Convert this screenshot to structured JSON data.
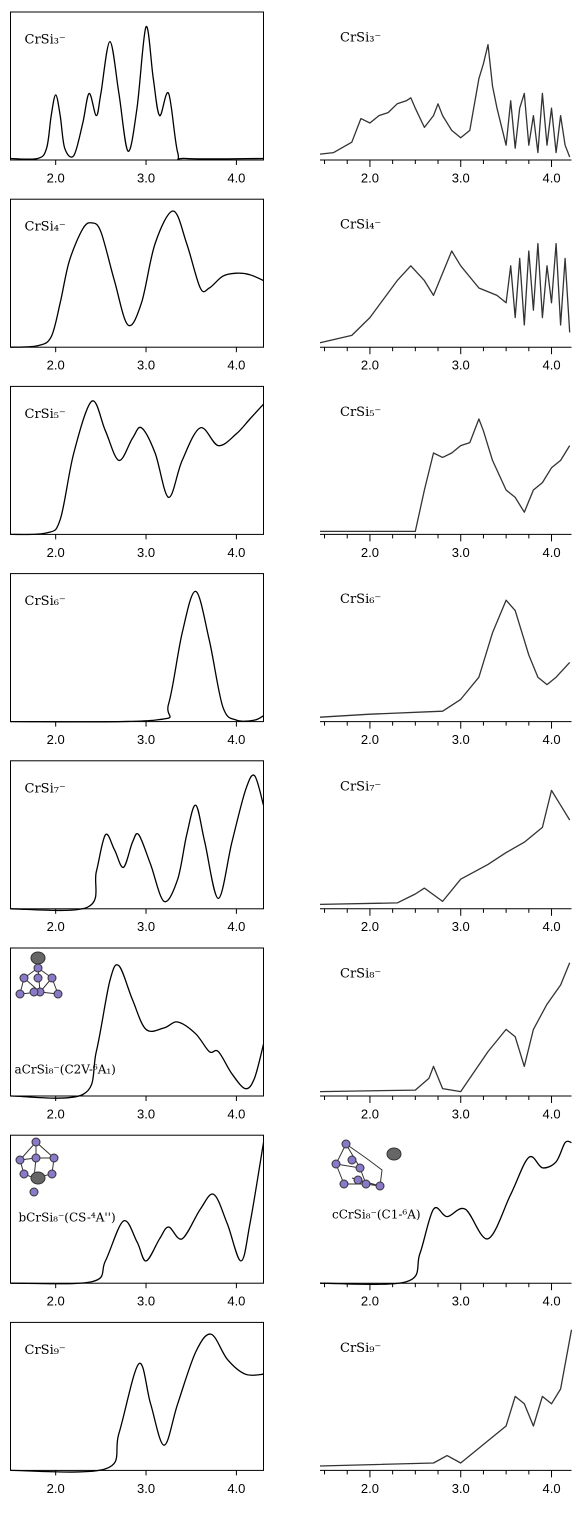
{
  "chart_data": [
    {
      "type": "line",
      "title": "CrSi₃⁻",
      "color": "#000000",
      "xlim": [
        1.5,
        4.3
      ],
      "ylim": [
        0,
        1
      ],
      "xticks": [
        {
          "value": 2,
          "label": "2.0"
        },
        {
          "value": 3,
          "label": "3.0"
        },
        {
          "value": 4,
          "label": "4.0"
        }
      ],
      "x": [
        1.5,
        1.8,
        1.9,
        1.95,
        2.0,
        2.05,
        2.1,
        2.2,
        2.3,
        2.37,
        2.45,
        2.5,
        2.6,
        2.7,
        2.8,
        2.9,
        3.0,
        3.08,
        3.15,
        3.25,
        3.35,
        3.45,
        4.3
      ],
      "values": [
        0.01,
        0.01,
        0.08,
        0.3,
        0.44,
        0.3,
        0.08,
        0.03,
        0.25,
        0.45,
        0.3,
        0.45,
        0.8,
        0.45,
        0.06,
        0.35,
        0.9,
        0.55,
        0.3,
        0.45,
        0.05,
        0.01,
        0.01
      ]
    },
    {
      "type": "line",
      "title": "CrSi₃⁻",
      "color": "#333333",
      "xlim": [
        1.45,
        4.22
      ],
      "ylim": [
        0,
        1
      ],
      "xticks": [
        {
          "value": 2,
          "label": "2.0"
        },
        {
          "value": 3,
          "label": "3.0"
        },
        {
          "value": 4,
          "label": "4.0"
        }
      ],
      "xminorticks": [
        1.5,
        1.75,
        2.25,
        2.5,
        2.75,
        3.25,
        3.5,
        3.75
      ],
      "x": [
        1.45,
        1.6,
        1.8,
        1.9,
        2.0,
        2.1,
        2.2,
        2.3,
        2.4,
        2.45,
        2.5,
        2.6,
        2.7,
        2.75,
        2.8,
        2.9,
        3.0,
        3.1,
        3.2,
        3.25,
        3.3,
        3.35,
        3.4,
        3.5,
        3.55,
        3.6,
        3.65,
        3.7,
        3.75,
        3.8,
        3.85,
        3.9,
        3.95,
        4.0,
        4.05,
        4.1,
        4.15,
        4.2
      ],
      "values": [
        0.04,
        0.05,
        0.12,
        0.28,
        0.25,
        0.3,
        0.32,
        0.38,
        0.4,
        0.42,
        0.35,
        0.22,
        0.3,
        0.38,
        0.3,
        0.2,
        0.15,
        0.2,
        0.55,
        0.65,
        0.78,
        0.5,
        0.35,
        0.1,
        0.4,
        0.08,
        0.35,
        0.45,
        0.1,
        0.3,
        0.05,
        0.45,
        0.1,
        0.35,
        0.05,
        0.3,
        0.1,
        0.02
      ]
    },
    {
      "type": "line",
      "title": "CrSi₄⁻",
      "color": "#000000",
      "xlim": [
        1.5,
        4.3
      ],
      "ylim": [
        0,
        1
      ],
      "xticks": [
        {
          "value": 2,
          "label": "2.0"
        },
        {
          "value": 3,
          "label": "3.0"
        },
        {
          "value": 4,
          "label": "4.0"
        }
      ],
      "x": [
        1.5,
        1.8,
        1.95,
        2.05,
        2.15,
        2.3,
        2.4,
        2.5,
        2.65,
        2.8,
        2.95,
        3.1,
        3.3,
        3.45,
        3.6,
        3.7,
        3.85,
        4.0,
        4.15,
        4.3
      ],
      "values": [
        0,
        0.01,
        0.07,
        0.3,
        0.58,
        0.8,
        0.84,
        0.78,
        0.45,
        0.15,
        0.3,
        0.7,
        0.92,
        0.7,
        0.4,
        0.4,
        0.48,
        0.5,
        0.49,
        0.45
      ]
    },
    {
      "type": "line",
      "title": "CrSi₄⁻",
      "color": "#333333",
      "xlim": [
        1.45,
        4.22
      ],
      "ylim": [
        0,
        1
      ],
      "xticks": [
        {
          "value": 2,
          "label": "2.0"
        },
        {
          "value": 3,
          "label": "3.0"
        },
        {
          "value": 4,
          "label": "4.0"
        }
      ],
      "xminorticks": [
        1.5,
        1.75,
        2.25,
        2.5,
        2.75,
        3.25,
        3.5,
        3.75
      ],
      "x": [
        1.45,
        1.8,
        2.0,
        2.3,
        2.45,
        2.6,
        2.7,
        2.9,
        3.0,
        3.2,
        3.4,
        3.5,
        3.55,
        3.6,
        3.65,
        3.7,
        3.75,
        3.8,
        3.85,
        3.9,
        3.95,
        4.0,
        4.05,
        4.1,
        4.15,
        4.2
      ],
      "values": [
        0.03,
        0.08,
        0.2,
        0.45,
        0.55,
        0.45,
        0.35,
        0.65,
        0.55,
        0.4,
        0.35,
        0.3,
        0.55,
        0.2,
        0.6,
        0.15,
        0.65,
        0.25,
        0.7,
        0.2,
        0.55,
        0.3,
        0.7,
        0.15,
        0.6,
        0.1
      ]
    },
    {
      "type": "line",
      "title": "CrSi₅⁻",
      "color": "#000000",
      "xlim": [
        1.5,
        4.3
      ],
      "ylim": [
        0,
        1
      ],
      "xticks": [
        {
          "value": 2,
          "label": "2.0"
        },
        {
          "value": 3,
          "label": "3.0"
        },
        {
          "value": 4,
          "label": "4.0"
        }
      ],
      "x": [
        1.5,
        1.9,
        2.05,
        2.2,
        2.4,
        2.55,
        2.7,
        2.85,
        2.95,
        3.1,
        3.25,
        3.4,
        3.6,
        3.8,
        4.0,
        4.15,
        4.3
      ],
      "values": [
        0,
        0.01,
        0.1,
        0.55,
        0.9,
        0.7,
        0.5,
        0.65,
        0.72,
        0.55,
        0.25,
        0.5,
        0.72,
        0.6,
        0.68,
        0.78,
        0.88
      ]
    },
    {
      "type": "line",
      "title": "CrSi₅⁻",
      "color": "#333333",
      "xlim": [
        1.45,
        4.22
      ],
      "ylim": [
        0,
        1
      ],
      "xticks": [
        {
          "value": 2,
          "label": "2.0"
        },
        {
          "value": 3,
          "label": "3.0"
        },
        {
          "value": 4,
          "label": "4.0"
        }
      ],
      "xminorticks": [
        1.5,
        1.75,
        2.25,
        2.5,
        2.75,
        3.25,
        3.5,
        3.75
      ],
      "x": [
        1.45,
        2.5,
        2.6,
        2.7,
        2.8,
        2.9,
        3.0,
        3.1,
        3.2,
        3.25,
        3.35,
        3.5,
        3.6,
        3.7,
        3.8,
        3.9,
        4.0,
        4.1,
        4.2
      ],
      "values": [
        0.02,
        0.02,
        0.3,
        0.55,
        0.52,
        0.55,
        0.6,
        0.62,
        0.78,
        0.7,
        0.5,
        0.3,
        0.25,
        0.15,
        0.3,
        0.35,
        0.45,
        0.5,
        0.6
      ]
    },
    {
      "type": "line",
      "title": "CrSi₆⁻",
      "color": "#000000",
      "xlim": [
        1.5,
        4.3
      ],
      "ylim": [
        0,
        1
      ],
      "xticks": [
        {
          "value": 2,
          "label": "2.0"
        },
        {
          "value": 3,
          "label": "3.0"
        },
        {
          "value": 4,
          "label": "4.0"
        }
      ],
      "x": [
        1.5,
        3.1,
        3.25,
        3.4,
        3.55,
        3.7,
        3.85,
        4.0,
        4.2,
        4.3
      ],
      "values": [
        0,
        0.01,
        0.12,
        0.6,
        0.88,
        0.55,
        0.1,
        0.01,
        0.01,
        0.04
      ]
    },
    {
      "type": "line",
      "title": "CrSi₆⁻",
      "color": "#333333",
      "xlim": [
        1.45,
        4.22
      ],
      "ylim": [
        0,
        1
      ],
      "xticks": [
        {
          "value": 2,
          "label": "2.0"
        },
        {
          "value": 3,
          "label": "3.0"
        },
        {
          "value": 4,
          "label": "4.0"
        }
      ],
      "xminorticks": [
        1.5,
        1.75,
        2.25,
        2.5,
        2.75,
        3.25,
        3.5,
        3.75
      ],
      "x": [
        1.45,
        2.0,
        2.8,
        3.0,
        3.2,
        3.35,
        3.5,
        3.6,
        3.75,
        3.85,
        3.95,
        4.05,
        4.2
      ],
      "values": [
        0.03,
        0.05,
        0.07,
        0.15,
        0.3,
        0.6,
        0.82,
        0.75,
        0.45,
        0.3,
        0.25,
        0.3,
        0.4
      ]
    },
    {
      "type": "line",
      "title": "CrSi₇⁻",
      "color": "#000000",
      "xlim": [
        1.5,
        4.3
      ],
      "ylim": [
        0,
        1
      ],
      "xticks": [
        {
          "value": 2,
          "label": "2.0"
        },
        {
          "value": 3,
          "label": "3.0"
        },
        {
          "value": 4,
          "label": "4.0"
        }
      ],
      "x": [
        1.5,
        2.35,
        2.45,
        2.55,
        2.65,
        2.75,
        2.85,
        2.92,
        3.05,
        3.2,
        3.35,
        3.45,
        3.55,
        3.65,
        3.8,
        3.95,
        4.1,
        4.2,
        4.3
      ],
      "values": [
        0,
        0.01,
        0.25,
        0.5,
        0.4,
        0.28,
        0.45,
        0.5,
        0.3,
        0.05,
        0.2,
        0.5,
        0.7,
        0.45,
        0.07,
        0.45,
        0.8,
        0.9,
        0.7
      ]
    },
    {
      "type": "line",
      "title": "CrSi₇⁻",
      "color": "#333333",
      "xlim": [
        1.45,
        4.22
      ],
      "ylim": [
        0,
        1
      ],
      "xticks": [
        {
          "value": 2,
          "label": "2.0"
        },
        {
          "value": 3,
          "label": "3.0"
        },
        {
          "value": 4,
          "label": "4.0"
        }
      ],
      "xminorticks": [
        1.5,
        1.75,
        2.25,
        2.5,
        2.75,
        3.25,
        3.5,
        3.75
      ],
      "x": [
        1.45,
        2.3,
        2.5,
        2.6,
        2.8,
        3.0,
        3.3,
        3.5,
        3.7,
        3.8,
        3.9,
        4.0,
        4.1,
        4.2
      ],
      "values": [
        0.03,
        0.04,
        0.1,
        0.14,
        0.05,
        0.2,
        0.3,
        0.38,
        0.45,
        0.5,
        0.55,
        0.8,
        0.7,
        0.6
      ]
    },
    {
      "type": "line",
      "title": "aCrSi₈⁻(C2V-⁶A₁)",
      "color": "#000000",
      "xlim": [
        1.5,
        4.3
      ],
      "ylim": [
        0,
        1
      ],
      "xticks": [
        {
          "value": 2,
          "label": "2.0"
        },
        {
          "value": 3,
          "label": "3.0"
        },
        {
          "value": 4,
          "label": "4.0"
        }
      ],
      "x": [
        1.5,
        2.3,
        2.45,
        2.6,
        2.7,
        2.85,
        3.0,
        3.2,
        3.35,
        3.55,
        3.7,
        3.8,
        3.95,
        4.1,
        4.2,
        4.3
      ],
      "values": [
        0,
        0.01,
        0.3,
        0.78,
        0.88,
        0.65,
        0.45,
        0.46,
        0.5,
        0.42,
        0.3,
        0.3,
        0.15,
        0.05,
        0.12,
        0.35
      ]
    },
    {
      "type": "line",
      "title": "CrSi₈⁻",
      "color": "#333333",
      "xlim": [
        1.45,
        4.22
      ],
      "ylim": [
        0,
        1
      ],
      "xticks": [
        {
          "value": 2,
          "label": "2.0"
        },
        {
          "value": 3,
          "label": "3.0"
        },
        {
          "value": 4,
          "label": "4.0"
        }
      ],
      "xminorticks": [
        1.5,
        1.75,
        2.25,
        2.5,
        2.75,
        3.25,
        3.5,
        3.75
      ],
      "x": [
        1.45,
        2.5,
        2.65,
        2.7,
        2.8,
        3.0,
        3.1,
        3.3,
        3.5,
        3.6,
        3.7,
        3.8,
        3.95,
        4.1,
        4.2
      ],
      "values": [
        0.03,
        0.04,
        0.12,
        0.2,
        0.05,
        0.03,
        0.12,
        0.3,
        0.45,
        0.4,
        0.2,
        0.45,
        0.62,
        0.75,
        0.9
      ]
    },
    {
      "type": "line",
      "title": "bCrSi₈⁻(CS-⁴A'')",
      "color": "#000000",
      "xlim": [
        1.5,
        4.3
      ],
      "ylim": [
        0,
        1
      ],
      "xticks": [
        {
          "value": 2,
          "label": "2.0"
        },
        {
          "value": 3,
          "label": "3.0"
        },
        {
          "value": 4,
          "label": "4.0"
        }
      ],
      "x": [
        1.5,
        2.4,
        2.55,
        2.75,
        2.9,
        3.0,
        3.15,
        3.25,
        3.4,
        3.6,
        3.75,
        3.9,
        4.05,
        4.15,
        4.3
      ],
      "values": [
        0,
        0.01,
        0.15,
        0.42,
        0.28,
        0.15,
        0.3,
        0.38,
        0.3,
        0.5,
        0.6,
        0.4,
        0.15,
        0.4,
        0.95
      ]
    },
    {
      "type": "line",
      "title": "cCrSi₈⁻(C1-⁶A)",
      "color": "#000000",
      "xlim": [
        1.45,
        4.22
      ],
      "ylim": [
        0,
        1
      ],
      "xticks": [
        {
          "value": 2,
          "label": "2.0"
        },
        {
          "value": 3,
          "label": "3.0"
        },
        {
          "value": 4,
          "label": "4.0"
        }
      ],
      "xminorticks": [
        1.5,
        1.75,
        2.25,
        2.5,
        2.75,
        3.25,
        3.5,
        3.75
      ],
      "x": [
        1.45,
        2.4,
        2.55,
        2.7,
        2.85,
        3.05,
        3.3,
        3.55,
        3.75,
        3.9,
        4.05,
        4.15,
        4.22
      ],
      "values": [
        0,
        0.01,
        0.2,
        0.5,
        0.45,
        0.5,
        0.3,
        0.6,
        0.85,
        0.78,
        0.82,
        0.95,
        0.95
      ]
    },
    {
      "type": "line",
      "title": "CrSi₉⁻",
      "color": "#000000",
      "xlim": [
        1.5,
        4.3
      ],
      "ylim": [
        0,
        1
      ],
      "xticks": [
        {
          "value": 2,
          "label": "2.0"
        },
        {
          "value": 3,
          "label": "3.0"
        },
        {
          "value": 4,
          "label": "4.0"
        }
      ],
      "x": [
        1.5,
        2.55,
        2.7,
        2.92,
        3.05,
        3.2,
        3.35,
        3.55,
        3.72,
        3.9,
        4.1,
        4.3
      ],
      "values": [
        0,
        0.01,
        0.25,
        0.72,
        0.45,
        0.17,
        0.45,
        0.8,
        0.92,
        0.75,
        0.65,
        0.65
      ]
    },
    {
      "type": "line",
      "title": "CrSi₉⁻",
      "color": "#333333",
      "xlim": [
        1.45,
        4.22
      ],
      "ylim": [
        0,
        1
      ],
      "xticks": [
        {
          "value": 2,
          "label": "2.0"
        },
        {
          "value": 3,
          "label": "3.0"
        },
        {
          "value": 4,
          "label": "4.0"
        }
      ],
      "xminorticks": [
        1.5,
        1.75,
        2.25,
        2.5,
        2.75,
        3.25,
        3.5,
        3.75
      ],
      "x": [
        1.45,
        2.7,
        2.85,
        3.0,
        3.3,
        3.5,
        3.6,
        3.7,
        3.8,
        3.9,
        4.0,
        4.1,
        4.22
      ],
      "values": [
        0.03,
        0.05,
        0.1,
        0.05,
        0.2,
        0.3,
        0.5,
        0.45,
        0.3,
        0.5,
        0.45,
        0.55,
        0.95
      ]
    }
  ]
}
